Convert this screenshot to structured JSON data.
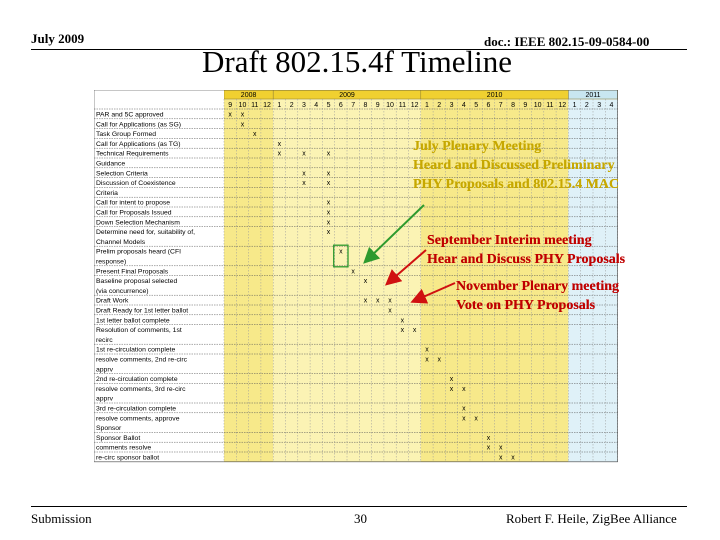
{
  "header": {
    "date": "July 2009",
    "doc": "doc.: IEEE 802.15-09-0584-00"
  },
  "slide": {
    "title": "Draft 802.15.4f Timeline"
  },
  "footer": {
    "submission": "Submission",
    "page": "30",
    "author": "Robert F. Heile, ZigBee Alliance"
  },
  "chart_data": {
    "type": "table",
    "years": [
      {
        "label": "2008",
        "months": [
          "9",
          "10",
          "11",
          "12"
        ]
      },
      {
        "label": "2009",
        "months": [
          "1",
          "2",
          "3",
          "4",
          "5",
          "6",
          "7",
          "8",
          "9",
          "10",
          "11",
          "12"
        ]
      },
      {
        "label": "2010",
        "months": [
          "1",
          "2",
          "3",
          "4",
          "5",
          "6",
          "7",
          "8",
          "9",
          "10",
          "11",
          "12"
        ]
      },
      {
        "label": "2011",
        "months": [
          "1",
          "2",
          "3",
          "4"
        ]
      }
    ],
    "rows": [
      {
        "lines": [
          "PAR and 5C approved"
        ],
        "marks": [
          0,
          1
        ]
      },
      {
        "lines": [
          "Call for Applications (as SG)"
        ],
        "marks": [
          1
        ]
      },
      {
        "lines": [
          "Task Group Formed"
        ],
        "marks": [
          2
        ]
      },
      {
        "lines": [
          "Call for Applications (as TG)"
        ],
        "marks": [
          4
        ]
      },
      {
        "lines": [
          "Technical Requirements"
        ],
        "marks": [
          4,
          6,
          8
        ]
      },
      {
        "lines": [
          "Guidance"
        ],
        "marks": []
      },
      {
        "lines": [
          "Selection Criteria"
        ],
        "marks": [
          6,
          8
        ]
      },
      {
        "lines": [
          "Discussion of Coexistence"
        ],
        "marks": [
          6,
          8
        ]
      },
      {
        "lines": [
          "Criteria"
        ],
        "marks": []
      },
      {
        "lines": [
          "Call for intent to propose"
        ],
        "marks": [
          8
        ]
      },
      {
        "lines": [
          "Call for Proposals Issued"
        ],
        "marks": [
          8
        ]
      },
      {
        "lines": [
          "Down Selection Mechanism"
        ],
        "marks": [
          8
        ]
      },
      {
        "lines": [
          "Determine need for, suitability of,",
          "Channel Models"
        ],
        "marks": [
          8
        ]
      },
      {
        "lines": [
          "Prelim proposals heard (CFI",
          "response)"
        ],
        "marks": [
          9
        ]
      },
      {
        "lines": [
          "Present Final Proposals"
        ],
        "marks": [
          10
        ]
      },
      {
        "lines": [
          "Baseline proposal selected",
          "(via concurrence)"
        ],
        "marks": [
          11
        ]
      },
      {
        "lines": [
          "Draft Work"
        ],
        "marks": [
          11,
          12,
          13
        ]
      },
      {
        "lines": [
          "Draft Ready for 1st letter ballot"
        ],
        "marks": [
          13
        ]
      },
      {
        "lines": [
          "1st letter ballot complete"
        ],
        "marks": [
          14
        ]
      },
      {
        "lines": [
          "Resolution of comments, 1st",
          "recirc"
        ],
        "marks": [
          14,
          15
        ]
      },
      {
        "lines": [
          "1st re-circulation complete"
        ],
        "marks": [
          16
        ]
      },
      {
        "lines": [
          "resolve comments, 2nd re-circ",
          "apprv"
        ],
        "marks": [
          16,
          17
        ]
      },
      {
        "lines": [
          "2nd re-circulation complete"
        ],
        "marks": [
          18
        ]
      },
      {
        "lines": [
          "resolve comments, 3rd re-circ",
          "apprv"
        ],
        "marks": [
          18,
          19
        ]
      },
      {
        "lines": [
          "3rd re-circulation complete"
        ],
        "marks": [
          19
        ]
      },
      {
        "lines": [
          "resolve comments, approve",
          "Sponsor"
        ],
        "marks": [
          19,
          20
        ]
      },
      {
        "lines": [
          "Sponsor Ballot"
        ],
        "marks": [
          21
        ]
      },
      {
        "lines": [
          "comments resolve"
        ],
        "marks": [
          21,
          22
        ]
      },
      {
        "lines": [
          "re-circ sponsor ballot"
        ],
        "marks": [
          22,
          23
        ]
      }
    ],
    "circled": [
      {
        "row": 13,
        "col": 9
      }
    ],
    "annotations": [
      {
        "lines": [
          "July Plenary Meeting",
          "Heard and Discussed Preliminary",
          "PHY Proposals and 802.15.4 MAC"
        ],
        "color": "#c7a800"
      },
      {
        "lines": [
          "September Interim meeting",
          "Hear and Discuss PHY Proposals"
        ],
        "color": "#c00000"
      },
      {
        "lines": [
          "November Plenary meeting",
          "Vote on PHY Proposals"
        ],
        "color": "#c00000"
      }
    ]
  }
}
